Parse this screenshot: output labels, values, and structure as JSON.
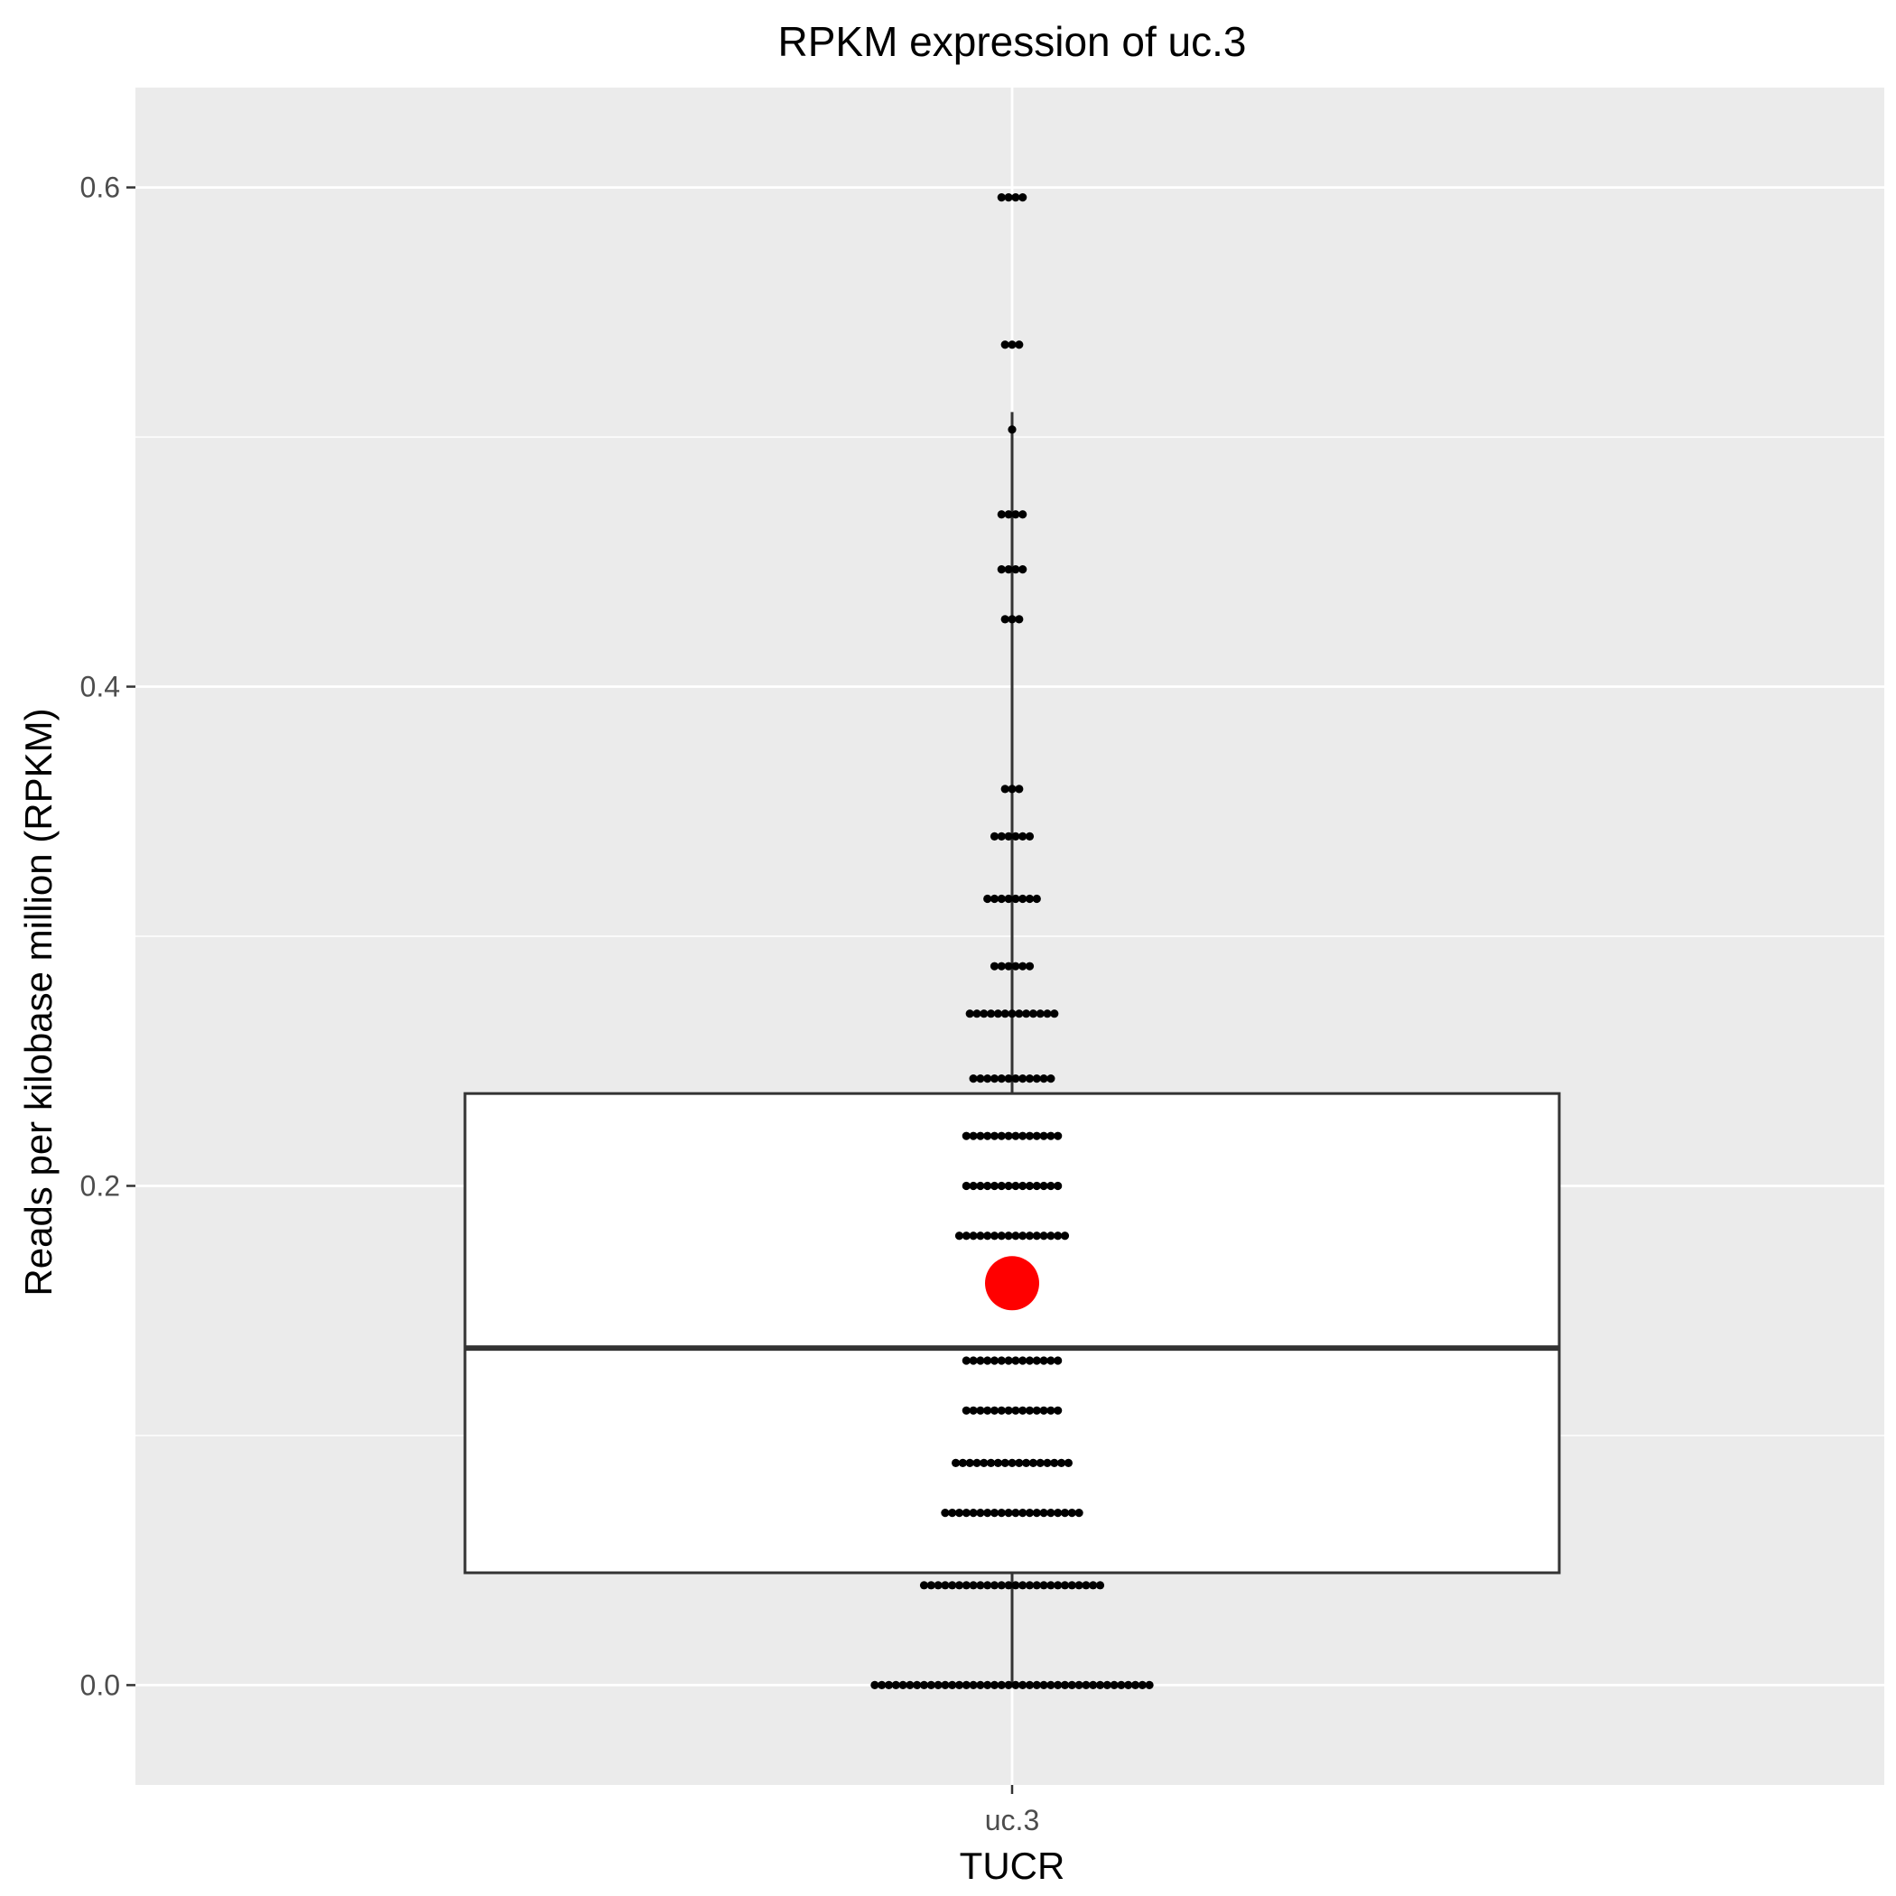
{
  "chart_data": {
    "type": "box",
    "title": "RPKM expression of  uc.3",
    "xlabel": "TUCR",
    "ylabel": "Reads per kilobase million (RPKM)",
    "categories": [
      "uc.3"
    ],
    "ylim": [
      -0.04,
      0.64
    ],
    "yticks": [
      0.0,
      0.2,
      0.4,
      0.6
    ],
    "ytick_labels": [
      "0.0",
      "0.2",
      "0.4",
      "0.6"
    ],
    "grid": true,
    "box": {
      "category": "uc.3",
      "q1": 0.045,
      "median": 0.135,
      "q3": 0.237,
      "whisker_low": 0.0,
      "whisker_high": 0.51
    },
    "mean": 0.161,
    "points": [
      {
        "y": 0.0,
        "count": 40
      },
      {
        "y": 0.04,
        "count": 26
      },
      {
        "y": 0.069,
        "count": 20
      },
      {
        "y": 0.089,
        "count": 17
      },
      {
        "y": 0.11,
        "count": 14
      },
      {
        "y": 0.13,
        "count": 14
      },
      {
        "y": 0.159,
        "count": 4
      },
      {
        "y": 0.18,
        "count": 16
      },
      {
        "y": 0.2,
        "count": 14
      },
      {
        "y": 0.22,
        "count": 14
      },
      {
        "y": 0.243,
        "count": 12
      },
      {
        "y": 0.269,
        "count": 13
      },
      {
        "y": 0.288,
        "count": 6
      },
      {
        "y": 0.315,
        "count": 8
      },
      {
        "y": 0.34,
        "count": 6
      },
      {
        "y": 0.359,
        "count": 3
      },
      {
        "y": 0.427,
        "count": 3
      },
      {
        "y": 0.447,
        "count": 4
      },
      {
        "y": 0.469,
        "count": 4
      },
      {
        "y": 0.503,
        "count": 1
      },
      {
        "y": 0.537,
        "count": 3
      },
      {
        "y": 0.596,
        "count": 4
      }
    ],
    "colors": {
      "panel": "#ebebeb",
      "grid": "#ffffff",
      "box_fill": "#ffffff",
      "box_stroke": "#333333",
      "median": "#333333",
      "points": "#000000",
      "mean": "#ff0000"
    }
  }
}
